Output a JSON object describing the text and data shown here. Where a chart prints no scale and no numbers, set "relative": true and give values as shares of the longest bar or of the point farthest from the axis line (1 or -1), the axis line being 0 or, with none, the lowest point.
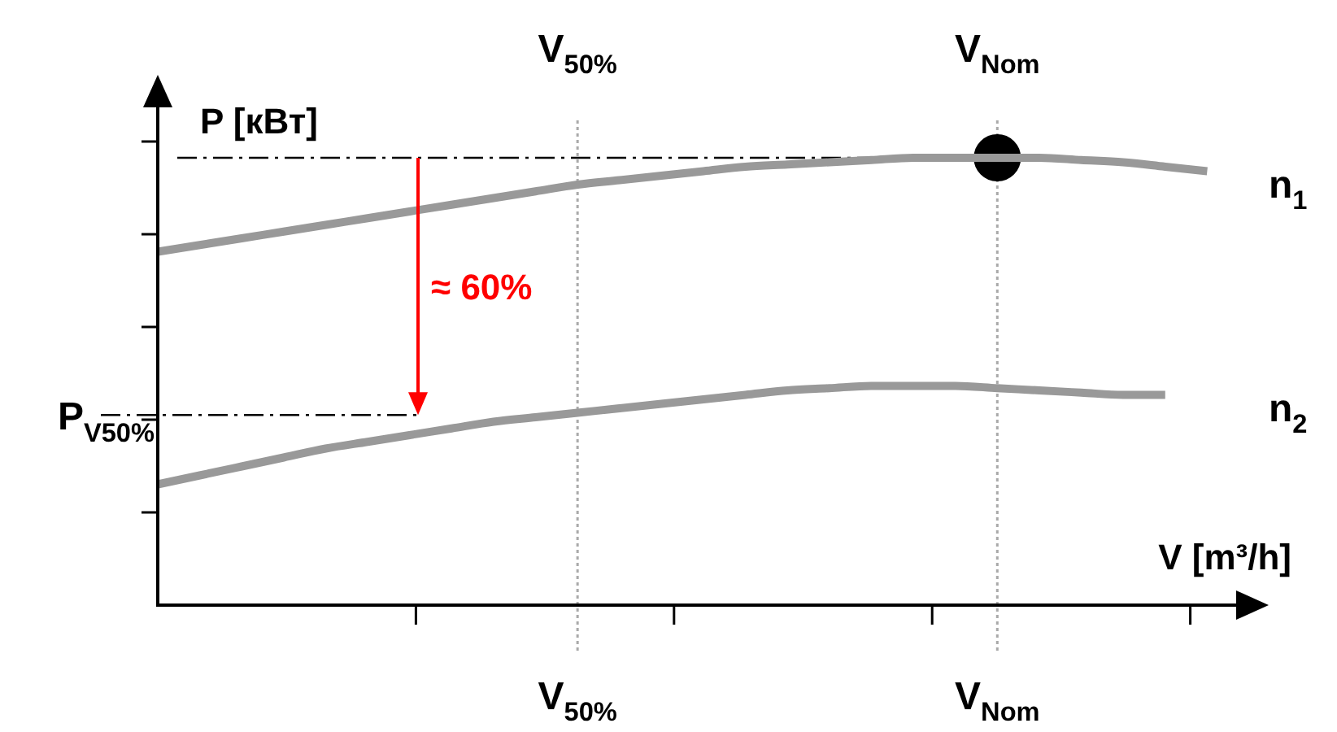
{
  "chart_data": {
    "type": "line",
    "relative": true,
    "ylabel": "P [кВт]",
    "xlabel": "V [m³/h]",
    "categories": [
      null,
      null,
      null,
      null,
      null,
      null,
      null,
      null,
      null,
      null,
      "V$_{50%}$",
      null,
      null,
      null,
      null,
      null,
      null,
      null,
      null,
      null,
      "V$_{Nom}$",
      null,
      null,
      null,
      null,
      null,
      null
    ],
    "series": [
      {
        "name": "n$_{1}$",
        "color": "#999999",
        "values": [
          0.79,
          0.805,
          0.82,
          0.835,
          0.85,
          0.865,
          0.88,
          0.895,
          0.91,
          0.925,
          0.94,
          0.95,
          0.96,
          0.97,
          0.98,
          0.985,
          0.99,
          0.995,
          1.0,
          1.0,
          1.0,
          1.0,
          0.995,
          0.99,
          0.98,
          0.97,
          null
        ]
      },
      {
        "name": "n$_{2}$",
        "color": "#999999",
        "values": [
          0.27,
          0.29,
          0.31,
          0.33,
          0.35,
          0.365,
          0.38,
          0.395,
          0.41,
          0.42,
          0.43,
          0.44,
          0.45,
          0.46,
          0.47,
          0.48,
          0.485,
          0.49,
          0.49,
          0.49,
          0.485,
          0.48,
          0.475,
          0.47,
          0.47,
          null,
          null
        ]
      },
      {
        "type": "scatter",
        "x": [
          "V$_{Nom}$"
        ],
        "values": [
          1.0
        ],
        "color": "#000000",
        "marker": "circle"
      }
    ],
    "ref_lines": [
      {
        "axis": "x",
        "value": "V$_{50%}$",
        "label": "V$_{50%}$",
        "color": "#aaaaaa",
        "line_style": "dotted"
      },
      {
        "axis": "x",
        "value": "V$_{Nom}$",
        "label": "V$_{Nom}$",
        "color": "#aaaaaa",
        "line_style": "dotted"
      },
      {
        "axis": "y",
        "value": 1.0,
        "color": "#000000",
        "line_style": "dashed"
      },
      {
        "axis": "y",
        "value": 0.425,
        "label": "P$_{V50%}$",
        "color": "#000000",
        "line_style": "dashed"
      }
    ],
    "annotations": [
      "≈ 60%"
    ],
    "legend": false
  }
}
